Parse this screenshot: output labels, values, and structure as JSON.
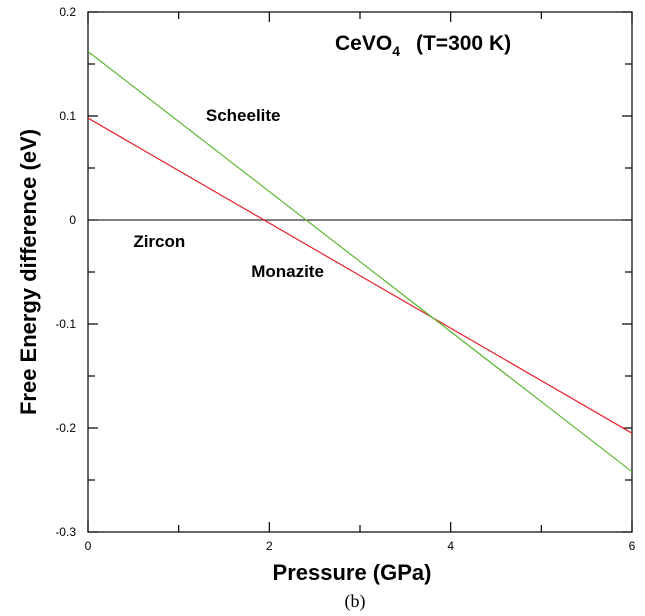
{
  "chart_data": {
    "type": "line",
    "title": "CeVO",
    "title_subscript": "4",
    "title_suffix": "(T=300 K)",
    "xlabel": "Pressure (GPa)",
    "ylabel": "Free Energy difference (eV)",
    "xlim": [
      0,
      6
    ],
    "ylim": [
      -0.3,
      0.2
    ],
    "xticks": [
      0,
      2,
      4,
      6
    ],
    "xtick_labels": [
      "0",
      "2",
      "4",
      "6"
    ],
    "x_minor_step": 1,
    "yticks": [
      -0.3,
      -0.2,
      -0.1,
      0,
      0.1,
      0.2
    ],
    "ytick_labels": [
      "-0.3",
      "-0.2",
      "-0.1",
      "0",
      "0.1",
      "0.2"
    ],
    "y_minor_step": 0.05,
    "grid": false,
    "reference_line": {
      "y": 0,
      "color": "#000000"
    },
    "series": [
      {
        "x": [
          0,
          6
        ],
        "values": [
          0.098,
          -0.205
        ],
        "color": "#e8202a"
      },
      {
        "x": [
          0,
          6
        ],
        "values": [
          0.162,
          -0.242
        ],
        "color": "#5cb935"
      }
    ],
    "annotations": [
      {
        "text": "Scheelite",
        "x": 1.3,
        "y": 0.095
      },
      {
        "text": "Zircon",
        "x": 0.5,
        "y": -0.026
      },
      {
        "text": "Monazite",
        "x": 1.8,
        "y": -0.055
      }
    ],
    "caption": "(b)"
  }
}
